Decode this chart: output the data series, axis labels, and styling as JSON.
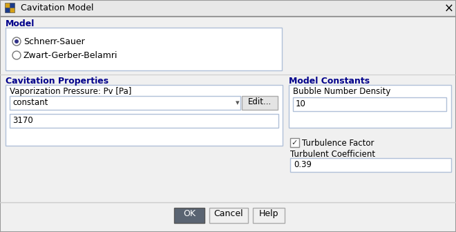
{
  "title": "Cavitation Model",
  "bg_color": "#f0f0f0",
  "dialog_bg": "#f0f0f0",
  "titlebar_bg": "#e8e8e8",
  "border_color": "#999999",
  "input_bg": "#ffffff",
  "input_border": "#b0c4de",
  "section_label_color": "#00008b",
  "text_color": "#000000",
  "button_ok_bg": "#5a6472",
  "button_ok_text": "#ffffff",
  "button_border": "#888888",
  "model_section_label": "Model",
  "radio1_label": "Schnerr-Sauer",
  "radio2_label": "Zwart-Gerber-Belamri",
  "cav_props_label": "Cavitation Properties",
  "vap_pressure_label": "Vaporization Pressure: Pv [Pa]",
  "dropdown_value": "constant",
  "edit_button_label": "Edit...",
  "value_3170": "3170",
  "model_constants_label": "Model Constants",
  "bubble_density_label": "Bubble Number Density",
  "bubble_density_value": "10",
  "turbulence_factor_label": "Turbulence Factor",
  "turbulent_coeff_label": "Turbulent Coefficient",
  "turbulent_coeff_value": "0.39",
  "ok_label": "OK",
  "cancel_label": "Cancel",
  "help_label": "Help",
  "icon_colors": [
    "#c8920a",
    "#1a3a8a",
    "#1a3a8a",
    "#c8920a"
  ],
  "separator_color": "#cccccc"
}
